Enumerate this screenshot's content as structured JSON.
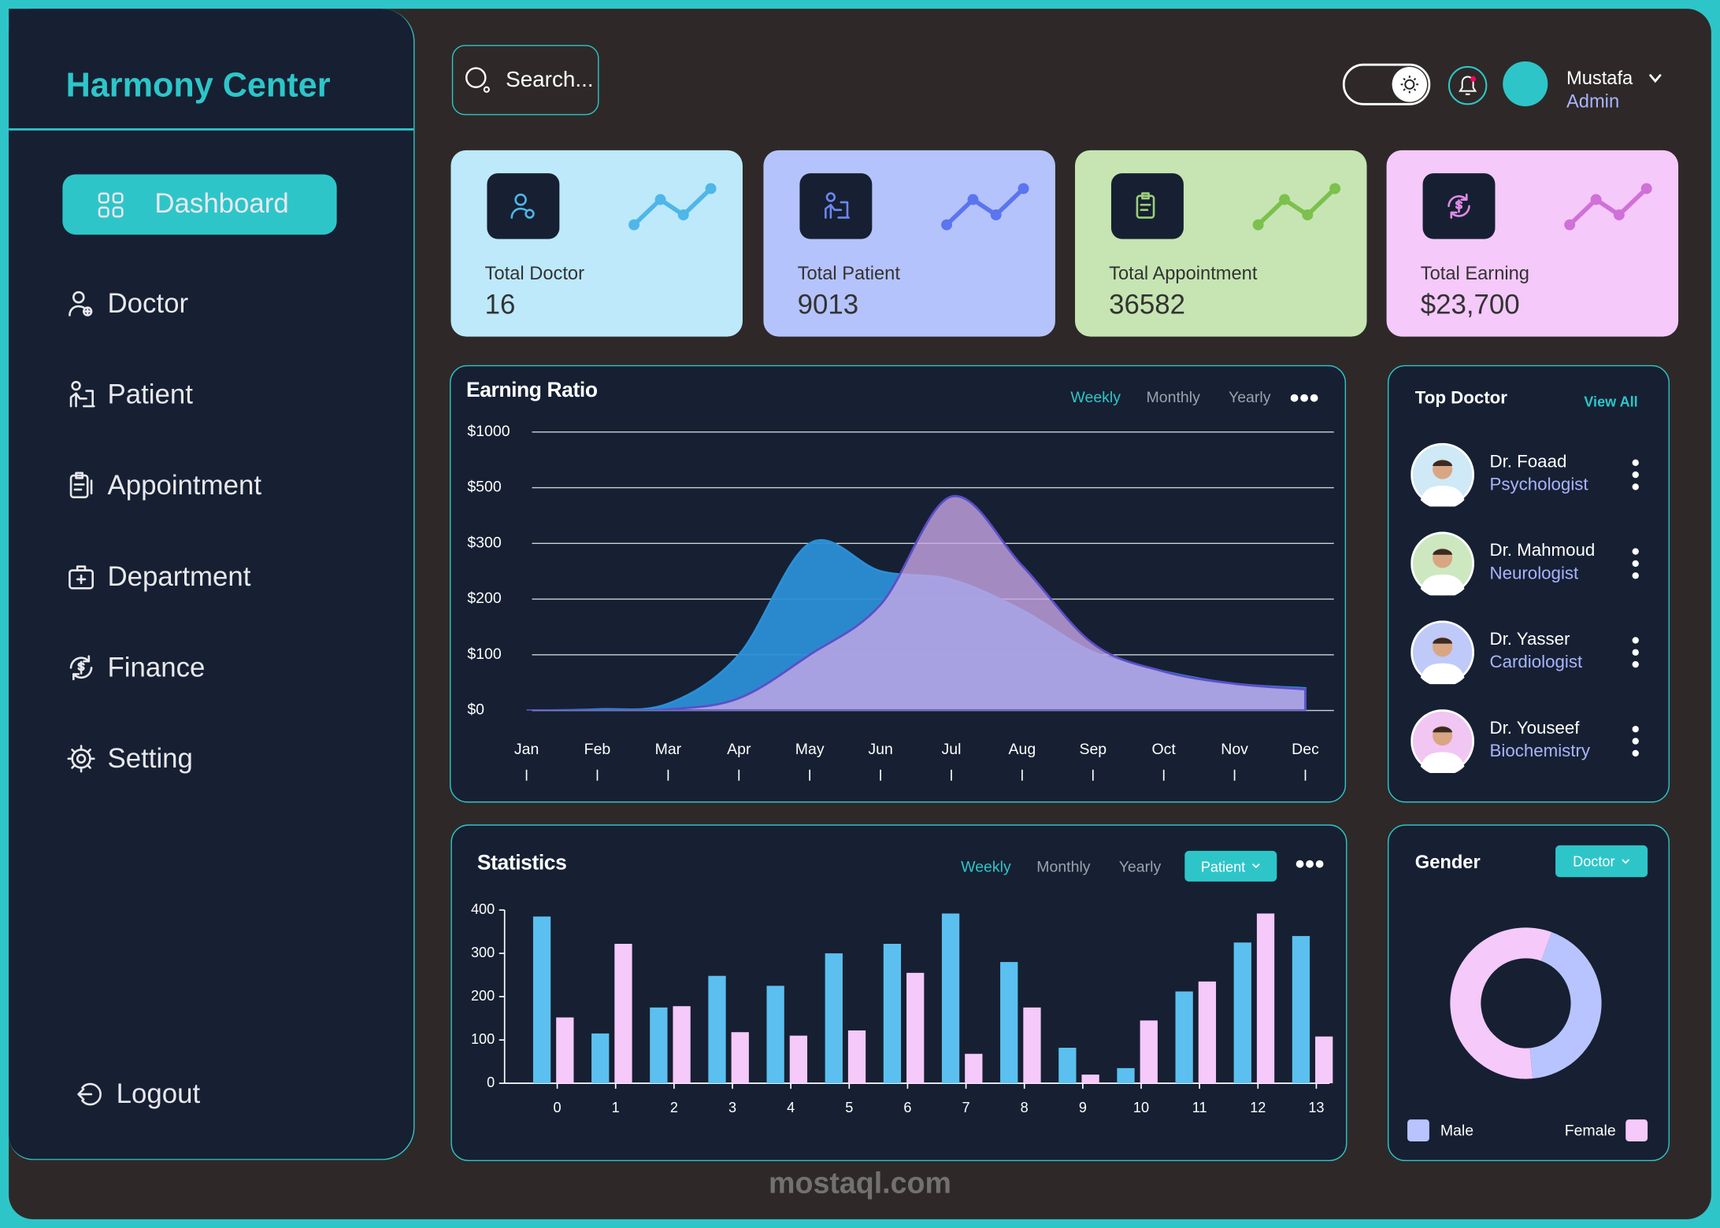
{
  "sidebar": {
    "brand": "Harmony Center",
    "nav": [
      "Dashboard",
      "Doctor",
      "Patient",
      "Appointment",
      "Department",
      "Finance",
      "Setting"
    ],
    "logout": "Logout"
  },
  "header": {
    "search": "Search...",
    "user": {
      "name": "Mustafa",
      "role": "Admin"
    }
  },
  "cards": [
    {
      "label": "Total Doctor",
      "value": "16"
    },
    {
      "label": "Total Patient",
      "value": "9013"
    },
    {
      "label": "Total Appointment",
      "value": "36582"
    },
    {
      "label": "Total Earning",
      "value": "$23,700"
    }
  ],
  "top_doctor": {
    "title": "Top Doctor",
    "action": "View All",
    "doctors": [
      {
        "name": "Dr. Foaad",
        "specialty": "Psychologist"
      },
      {
        "name": "Dr. Mahmoud",
        "specialty": "Neurologist"
      },
      {
        "name": "Dr. Yasser",
        "specialty": "Cardiologist"
      },
      {
        "name": "Dr. Youseef",
        "specialty": "Biochemistry"
      }
    ]
  },
  "chart_data": [
    {
      "type": "area",
      "title": "Earning Ratio",
      "tabs": [
        "Weekly",
        "Monthly",
        "Yearly"
      ],
      "categories": [
        "Jan",
        "Feb",
        "Mar",
        "Apr",
        "May",
        "Jun",
        "Jul",
        "Aug",
        "Sep",
        "Oct",
        "Nov",
        "Dec"
      ],
      "series": [
        {
          "color": "#2b8fd6",
          "values": [
            0,
            2,
            12,
            100,
            300,
            250,
            235,
            180,
            105,
            70,
            48,
            40
          ]
        },
        {
          "color": "#c7a6e6",
          "values": [
            0,
            0,
            2,
            22,
            100,
            190,
            468,
            260,
            120,
            70,
            48,
            38
          ]
        }
      ],
      "ylim": [
        0,
        1000
      ],
      "yticks": [
        {
          "value": 0,
          "label": "$0"
        },
        {
          "value": 100,
          "label": "$100"
        },
        {
          "value": 200,
          "label": "$200"
        },
        {
          "value": 300,
          "label": "$300"
        },
        {
          "value": 500,
          "label": "$500"
        },
        {
          "value": 1000,
          "label": "$1000"
        }
      ],
      "grid": true
    },
    {
      "type": "bar",
      "title": "Statistics",
      "tabs": [
        "Weekly",
        "Monthly",
        "Yearly"
      ],
      "filter": "Patient",
      "categories": [
        0,
        1,
        2,
        3,
        4,
        5,
        6,
        7,
        8,
        9,
        10,
        11,
        12,
        13
      ],
      "series": [
        {
          "color": "#5bc0ef",
          "values": [
            385,
            115,
            175,
            248,
            225,
            300,
            322,
            392,
            280,
            82,
            35,
            212,
            325,
            340
          ]
        },
        {
          "color": "#f5c9fa",
          "values": [
            152,
            322,
            178,
            118,
            110,
            122,
            255,
            68,
            175,
            20,
            145,
            235,
            392,
            108
          ]
        }
      ],
      "ylim": [
        0,
        400
      ],
      "yticks": [
        0,
        100,
        200,
        300,
        400
      ]
    },
    {
      "type": "donut",
      "title": "Gender",
      "filter": "Doctor",
      "categories": [
        "Male",
        "Female"
      ],
      "values": [
        43,
        57
      ],
      "colors": [
        "#b8c4ff",
        "#f5c9fa"
      ]
    }
  ],
  "watermark": "mostaql.com"
}
